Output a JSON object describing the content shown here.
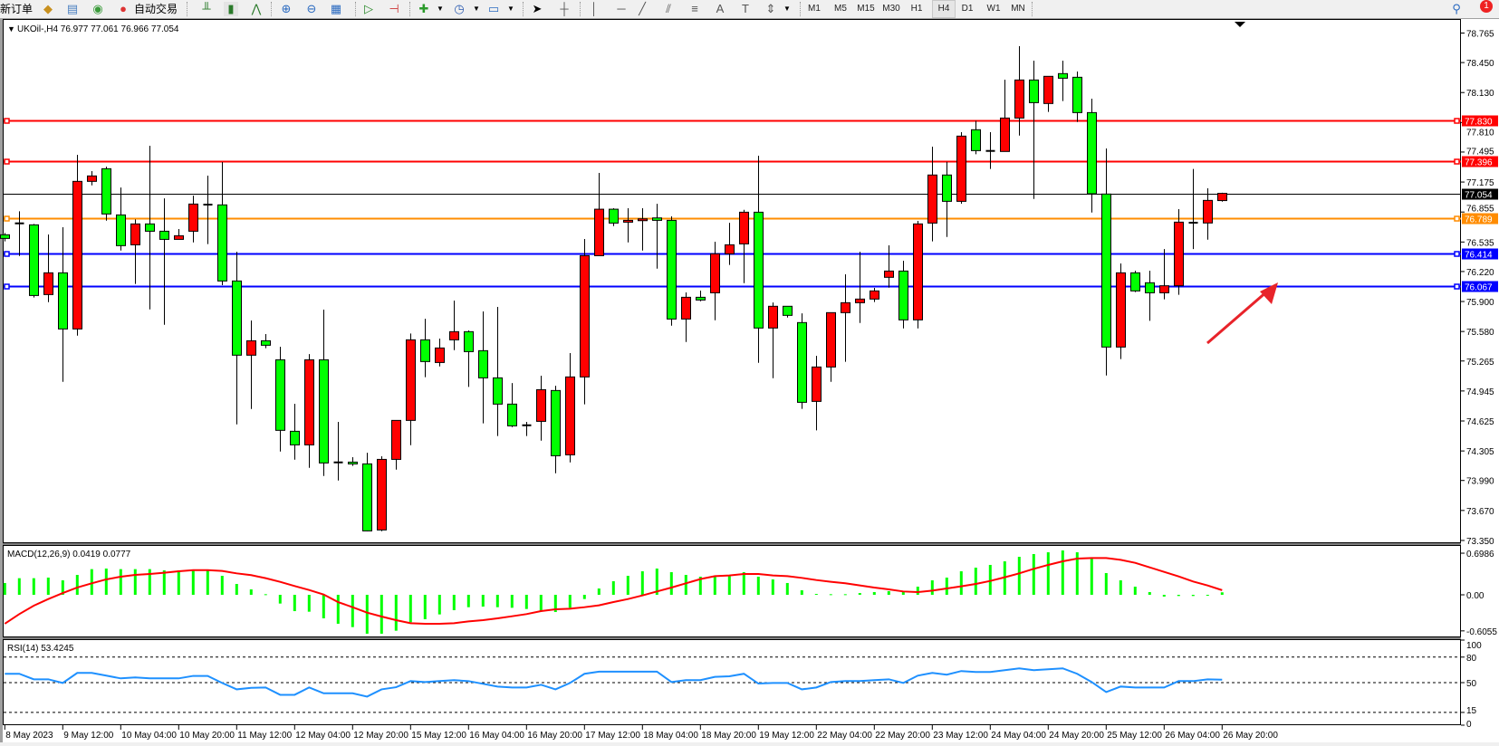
{
  "toolbar": {
    "new_order_label": "新订单",
    "autotrade_label": "自动交易",
    "timeframes": [
      "M1",
      "M5",
      "M15",
      "M30",
      "H1",
      "H4",
      "D1",
      "W1",
      "MN"
    ],
    "active_timeframe": "H4",
    "notification_count": "1",
    "icons": [
      "new-order-icon",
      "market-watch-icon",
      "data-window-icon",
      "navigator-icon",
      "autotrade-icon",
      "bar-chart-icon",
      "candlestick-icon",
      "line-chart-icon",
      "zoom-in-icon",
      "zoom-out-icon",
      "tile-windows-icon",
      "auto-scroll-icon",
      "chart-shift-icon",
      "indicators-icon",
      "periods-icon",
      "templates-icon",
      "cursor-icon",
      "crosshair-icon",
      "vertical-line-icon",
      "horizontal-line-icon",
      "trendline-icon",
      "equidistant-channel-icon",
      "fibonacci-icon",
      "text-icon",
      "text-label-icon",
      "arrows-icon",
      "search-icon",
      "notification-icon"
    ]
  },
  "chart": {
    "legend": "UKOil-,H4  76.977 77.061 76.966 77.054",
    "up_color": "#ff0000",
    "down_color": "#00ff00",
    "price_ticks": [
      "78.765",
      "78.450",
      "78.130",
      "77.810",
      "77.495",
      "77.175",
      "76.855",
      "76.535",
      "76.220",
      "75.900",
      "75.580",
      "75.265",
      "74.945",
      "74.625",
      "74.305",
      "73.990",
      "73.670",
      "73.350"
    ],
    "horizontal_lines": [
      {
        "price": 77.83,
        "label": "77.830",
        "color": "#ff0000"
      },
      {
        "price": 77.396,
        "label": "77.396",
        "color": "#ff0000"
      },
      {
        "price": 76.789,
        "label": "76.789",
        "color": "#ff8c00"
      },
      {
        "price": 76.414,
        "label": "76.414",
        "color": "#0000ff"
      },
      {
        "price": 76.067,
        "label": "76.067",
        "color": "#0000ff"
      }
    ],
    "current_price": {
      "price": 77.054,
      "label": "77.054",
      "color": "#000000"
    },
    "time_labels": [
      "8 May 2023",
      "9 May 12:00",
      "10 May 04:00",
      "10 May 20:00",
      "11 May 12:00",
      "12 May 04:00",
      "12 May 20:00",
      "15 May 12:00",
      "16 May 04:00",
      "16 May 20:00",
      "17 May 12:00",
      "18 May 04:00",
      "18 May 20:00",
      "19 May 12:00",
      "22 May 04:00",
      "22 May 20:00",
      "23 May 12:00",
      "24 May 04:00",
      "24 May 20:00",
      "25 May 12:00",
      "26 May 04:00",
      "26 May 20:00"
    ],
    "annotation_arrow_color": "#e8232a"
  },
  "chart_data": {
    "type": "candlestick",
    "symbol": "UKOil-",
    "timeframe": "H4",
    "ylim": [
      73.35,
      78.765
    ],
    "ohlc": [
      [
        76.612,
        76.631,
        76.541,
        76.573
      ],
      [
        76.734,
        76.863,
        76.386,
        76.73
      ],
      [
        76.718,
        76.728,
        75.942,
        75.964
      ],
      [
        75.974,
        76.615,
        75.893,
        76.206
      ],
      [
        76.206,
        76.692,
        75.043,
        75.607
      ],
      [
        75.607,
        77.465,
        75.536,
        77.182
      ],
      [
        77.182,
        77.291,
        77.14,
        77.24
      ],
      [
        77.317,
        77.339,
        76.763,
        76.834
      ],
      [
        76.824,
        77.117,
        76.444,
        76.496
      ],
      [
        76.505,
        76.776,
        76.087,
        76.728
      ],
      [
        76.728,
        77.562,
        75.816,
        76.65
      ],
      [
        76.65,
        77.001,
        75.652,
        76.563
      ],
      [
        76.563,
        76.673,
        76.563,
        76.602
      ],
      [
        76.65,
        77.03,
        76.531,
        76.94
      ],
      [
        76.934,
        77.243,
        76.512,
        76.937
      ],
      [
        76.931,
        77.388,
        76.074,
        76.119
      ],
      [
        76.119,
        76.431,
        74.589,
        75.327
      ],
      [
        75.327,
        75.697,
        74.753,
        75.481
      ],
      [
        75.481,
        75.552,
        75.401,
        75.433
      ],
      [
        75.278,
        75.417,
        74.299,
        74.525
      ],
      [
        74.515,
        74.808,
        74.212,
        74.37
      ],
      [
        74.37,
        75.339,
        74.125,
        75.278
      ],
      [
        75.278,
        75.813,
        74.038,
        74.177
      ],
      [
        74.183,
        74.615,
        73.99,
        74.18
      ],
      [
        74.186,
        74.238,
        74.145,
        74.167
      ],
      [
        74.167,
        74.286,
        73.449,
        73.452
      ],
      [
        73.462,
        74.248,
        73.449,
        74.215
      ],
      [
        74.215,
        74.631,
        74.106,
        74.631
      ],
      [
        74.631,
        75.558,
        74.367,
        75.491
      ],
      [
        75.491,
        75.716,
        75.092,
        75.259
      ],
      [
        75.249,
        75.504,
        75.207,
        75.404
      ],
      [
        75.491,
        75.91,
        75.381,
        75.578
      ],
      [
        75.578,
        75.591,
        74.988,
        75.365
      ],
      [
        75.375,
        75.794,
        74.599,
        75.085
      ],
      [
        75.085,
        75.842,
        74.464,
        74.805
      ],
      [
        74.805,
        75.03,
        74.56,
        74.573
      ],
      [
        74.579,
        74.615,
        74.464,
        74.576
      ],
      [
        74.621,
        75.108,
        74.415,
        74.959
      ],
      [
        74.95,
        75.001,
        74.067,
        74.254
      ],
      [
        74.264,
        75.349,
        74.183,
        75.095
      ],
      [
        75.095,
        76.567,
        74.802,
        76.389
      ],
      [
        76.389,
        77.272,
        76.389,
        76.885
      ],
      [
        76.885,
        76.895,
        76.705,
        76.737
      ],
      [
        76.747,
        76.895,
        76.531,
        76.766
      ],
      [
        76.766,
        76.895,
        76.444,
        76.782
      ],
      [
        76.792,
        76.943,
        76.251,
        76.766
      ],
      [
        76.766,
        76.808,
        75.642,
        75.713
      ],
      [
        75.713,
        75.997,
        75.468,
        75.945
      ],
      [
        75.945,
        76.016,
        75.903,
        75.916
      ],
      [
        75.993,
        76.538,
        75.7,
        76.409
      ],
      [
        76.409,
        76.74,
        76.29,
        76.505
      ],
      [
        76.515,
        76.879,
        76.096,
        76.853
      ],
      [
        76.853,
        77.456,
        75.246,
        75.617
      ],
      [
        75.617,
        75.89,
        75.082,
        75.849
      ],
      [
        75.849,
        75.849,
        75.729,
        75.752
      ],
      [
        75.675,
        75.774,
        74.754,
        74.824
      ],
      [
        74.834,
        75.32,
        74.525,
        75.201
      ],
      [
        75.201,
        75.781,
        75.043,
        75.781
      ],
      [
        75.781,
        76.19,
        75.256,
        75.887
      ],
      [
        75.887,
        76.431,
        75.671,
        75.926
      ],
      [
        75.926,
        76.045,
        75.894,
        76.013
      ],
      [
        76.158,
        76.499,
        76.048,
        76.225
      ],
      [
        76.225,
        76.335,
        75.613,
        75.704
      ],
      [
        75.704,
        76.76,
        75.613,
        76.728
      ],
      [
        76.737,
        77.552,
        76.541,
        77.25
      ],
      [
        77.25,
        77.391,
        76.589,
        76.969
      ],
      [
        76.969,
        77.707,
        76.944,
        77.665
      ],
      [
        77.733,
        77.829,
        77.472,
        77.51
      ],
      [
        77.507,
        77.707,
        77.314,
        77.51
      ],
      [
        77.501,
        78.267,
        77.501,
        77.858
      ],
      [
        77.858,
        78.625,
        77.671,
        78.264
      ],
      [
        78.264,
        78.47,
        76.995,
        78.022
      ],
      [
        78.013,
        78.303,
        77.923,
        78.303
      ],
      [
        78.332,
        78.47,
        78.039,
        78.283
      ],
      [
        78.293,
        78.354,
        77.816,
        77.916
      ],
      [
        77.916,
        78.064,
        76.85,
        77.05
      ],
      [
        77.047,
        77.533,
        75.111,
        75.414
      ],
      [
        75.414,
        76.306,
        75.285,
        76.206
      ],
      [
        76.206,
        76.229,
        76.0,
        76.013
      ],
      [
        76.1,
        76.229,
        75.694,
        75.993
      ],
      [
        75.993,
        76.46,
        75.923,
        76.068
      ],
      [
        76.068,
        76.886,
        75.971,
        76.747
      ],
      [
        76.741,
        77.314,
        76.46,
        76.744
      ],
      [
        76.738,
        77.108,
        76.56,
        76.979
      ],
      [
        76.977,
        77.061,
        76.966,
        77.054
      ]
    ]
  },
  "macd": {
    "legend": "MACD(12,26,9) 0.0419 0.0777",
    "ticks": [
      {
        "value": 0.6986,
        "label": "0.6986"
      },
      {
        "value": 0,
        "label": "0.00"
      },
      {
        "value": -0.6055,
        "label": "-0.6055"
      }
    ],
    "histogram_color": "#00ff00",
    "signal_color": "#ff0000",
    "histogram": [
      0.198,
      0.279,
      0.279,
      0.289,
      0.243,
      0.334,
      0.431,
      0.441,
      0.431,
      0.431,
      0.431,
      0.41,
      0.41,
      0.41,
      0.41,
      0.319,
      0.182,
      0.091,
      0.01,
      -0.147,
      -0.274,
      -0.284,
      -0.395,
      -0.486,
      -0.542,
      -0.653,
      -0.653,
      -0.603,
      -0.461,
      -0.41,
      -0.329,
      -0.258,
      -0.208,
      -0.198,
      -0.208,
      -0.218,
      -0.238,
      -0.279,
      -0.289,
      -0.218,
      -0.071,
      0.106,
      0.228,
      0.319,
      0.395,
      0.441,
      0.38,
      0.334,
      0.304,
      0.319,
      0.319,
      0.38,
      0.304,
      0.258,
      0.198,
      0.076,
      0.015,
      0.01,
      0.01,
      0.03,
      0.046,
      0.061,
      0.046,
      0.137,
      0.243,
      0.289,
      0.395,
      0.456,
      0.502,
      0.562,
      0.638,
      0.684,
      0.714,
      0.745,
      0.714,
      0.608,
      0.365,
      0.243,
      0.137,
      0.046,
      -0.03,
      -0.02,
      -0.02,
      -0.01,
      0.0419
    ],
    "signal": [
      -0.486,
      -0.324,
      -0.182,
      -0.071,
      0.03,
      0.122,
      0.193,
      0.259,
      0.304,
      0.334,
      0.35,
      0.37,
      0.395,
      0.415,
      0.415,
      0.4,
      0.36,
      0.33,
      0.279,
      0.218,
      0.147,
      0.081,
      0.005,
      -0.122,
      -0.208,
      -0.299,
      -0.365,
      -0.426,
      -0.477,
      -0.486,
      -0.486,
      -0.477,
      -0.446,
      -0.426,
      -0.395,
      -0.36,
      -0.324,
      -0.274,
      -0.243,
      -0.233,
      -0.208,
      -0.177,
      -0.122,
      -0.071,
      -0.01,
      0.056,
      0.122,
      0.193,
      0.264,
      0.314,
      0.324,
      0.35,
      0.35,
      0.324,
      0.314,
      0.284,
      0.248,
      0.218,
      0.193,
      0.157,
      0.122,
      0.091,
      0.056,
      0.046,
      0.071,
      0.106,
      0.142,
      0.182,
      0.233,
      0.294,
      0.36,
      0.436,
      0.502,
      0.562,
      0.608,
      0.618,
      0.618,
      0.587,
      0.537,
      0.461,
      0.385,
      0.309,
      0.223,
      0.157,
      0.0777
    ]
  },
  "rsi": {
    "legend": "RSI(14) 53.4245",
    "ticks": [
      "100",
      "80",
      "50",
      "15",
      "0"
    ],
    "levels": [
      80,
      50,
      15
    ],
    "line_color": "#1e90ff",
    "values": [
      60.4,
      60.4,
      53.9,
      53.9,
      49.6,
      61.4,
      61.4,
      58.2,
      55.0,
      56.1,
      55.0,
      55.0,
      55.0,
      57.9,
      57.9,
      49.6,
      42.1,
      43.9,
      44.3,
      35.7,
      35.7,
      44.3,
      37.5,
      37.5,
      37.5,
      33.6,
      42.1,
      44.6,
      51.8,
      50.7,
      51.8,
      52.9,
      51.8,
      48.6,
      45.4,
      44.3,
      44.3,
      47.5,
      42.1,
      49.6,
      60.4,
      62.9,
      62.9,
      62.9,
      62.9,
      62.9,
      50.7,
      52.9,
      52.9,
      56.8,
      57.5,
      60.4,
      48.9,
      49.6,
      49.6,
      42.1,
      44.3,
      50.7,
      51.8,
      51.8,
      52.9,
      53.9,
      49.6,
      58.2,
      61.4,
      59.3,
      63.6,
      62.5,
      62.5,
      64.6,
      66.8,
      64.6,
      65.7,
      66.8,
      60.4,
      50.7,
      38.9,
      45.4,
      44.3,
      44.3,
      44.3,
      51.8,
      51.8,
      53.9,
      53.4245
    ]
  }
}
